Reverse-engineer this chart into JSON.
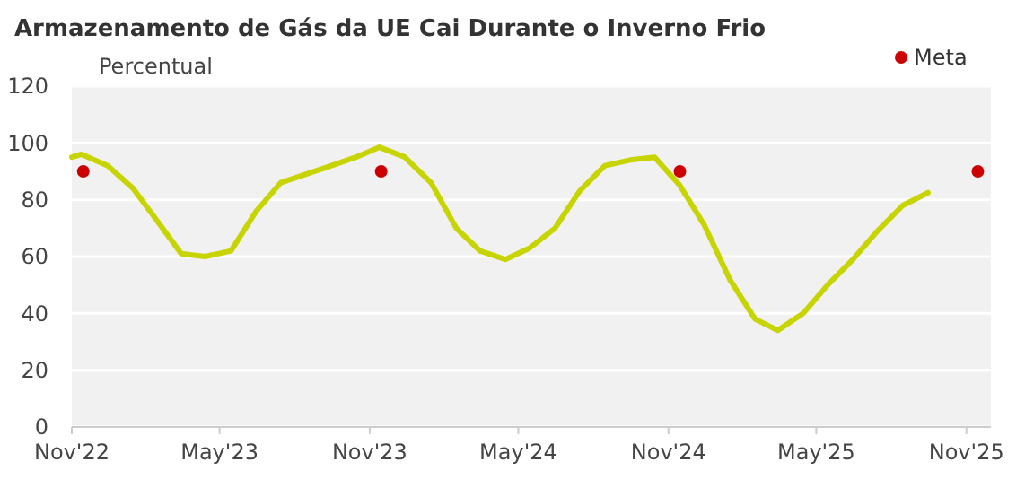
{
  "chart_data": {
    "type": "line",
    "title": "Armazenamento de Gás da UE Cai Durante o Inverno Frio",
    "ylabel": "Percentual",
    "xlim": [
      "2022-11-01",
      "2025-12-01"
    ],
    "ylim": [
      0,
      120
    ],
    "yticks": [
      0,
      20,
      40,
      60,
      80,
      100,
      120
    ],
    "xticks": [
      {
        "value": "2022-11-01",
        "label": "Nov'22"
      },
      {
        "value": "2023-05-01",
        "label": "May'23"
      },
      {
        "value": "2023-11-01",
        "label": "Nov'23"
      },
      {
        "value": "2024-05-01",
        "label": "May'24"
      },
      {
        "value": "2024-11-01",
        "label": "Nov'24"
      },
      {
        "value": "2025-05-01",
        "label": "May'25"
      },
      {
        "value": "2025-11-01",
        "label": "Nov'25"
      }
    ],
    "grid": "y",
    "legend": "top right",
    "series": [
      {
        "color": "#c8d400",
        "x": [
          "2022-11-01",
          "2022-11-13",
          "2022-12-15",
          "2023-01-15",
          "2023-02-15",
          "2023-03-15",
          "2023-04-13",
          "2023-05-15",
          "2023-06-15",
          "2023-07-15",
          "2023-08-15",
          "2023-09-15",
          "2023-10-15",
          "2023-11-13",
          "2023-12-14",
          "2024-01-15",
          "2024-02-15",
          "2024-03-15",
          "2024-04-15",
          "2024-05-15",
          "2024-06-15",
          "2024-07-15",
          "2024-08-15",
          "2024-09-15",
          "2024-10-15",
          "2024-11-15",
          "2024-12-15",
          "2025-01-15",
          "2025-02-15",
          "2025-03-15",
          "2025-04-15",
          "2025-05-15",
          "2025-06-15",
          "2025-07-15",
          "2025-08-15",
          "2025-09-15"
        ],
        "values": [
          95,
          96,
          92,
          84,
          72,
          61,
          60,
          62,
          76,
          86,
          89,
          92,
          95,
          98.5,
          95,
          86,
          70,
          62,
          59,
          63,
          70,
          83,
          92,
          94,
          95,
          85,
          71,
          52,
          38,
          34,
          40,
          50,
          59,
          69,
          78,
          82.5
        ]
      },
      {
        "type": "scatter",
        "name": "Meta",
        "color": "#cc0000",
        "x": [
          "2022-11-15",
          "2023-11-15",
          "2024-11-15",
          "2025-11-15"
        ],
        "values": [
          90,
          90,
          90,
          90
        ]
      }
    ]
  }
}
